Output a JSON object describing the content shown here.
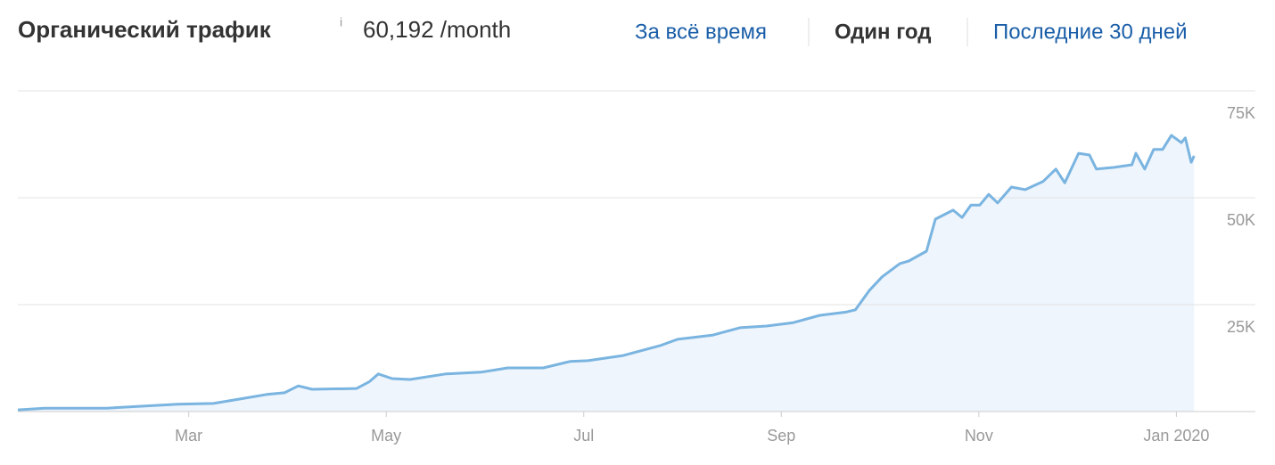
{
  "header": {
    "title": "Органический трафик",
    "info": "i",
    "total": "60,192 /month",
    "tabs": [
      "За всё время",
      "Один год",
      "Последние 30 дней"
    ]
  },
  "chart_data": {
    "type": "area",
    "color": "#7ab4e0",
    "fill": "#eef5fc",
    "grid": true,
    "x": [
      0.27,
      0.54,
      1.17,
      1.89,
      2.25,
      2.79,
      2.97,
      3.11,
      3.25,
      3.7,
      3.83,
      3.92,
      4.06,
      4.24,
      4.6,
      4.96,
      5.23,
      5.59,
      5.86,
      6.04,
      6.4,
      6.77,
      6.95,
      7.31,
      7.58,
      7.85,
      8.12,
      8.39,
      8.66,
      8.75,
      8.89,
      9.02,
      9.2,
      9.29,
      9.47,
      9.56,
      9.74,
      9.83,
      9.92,
      10.01,
      10.1,
      10.19,
      10.33,
      10.47,
      10.65,
      10.78,
      10.87,
      11.01,
      11.12,
      11.19,
      11.37,
      11.55,
      11.59,
      11.68,
      11.77,
      11.86,
      11.95,
      12.05,
      12.09,
      12.15,
      12.18
    ],
    "values": [
      400,
      800,
      800,
      1700,
      1900,
      4000,
      4400,
      6000,
      5200,
      5400,
      7000,
      8800,
      7700,
      7500,
      8800,
      9200,
      10200,
      10200,
      11700,
      11900,
      13100,
      15400,
      16900,
      17900,
      19600,
      20000,
      20800,
      22500,
      23300,
      23800,
      28300,
      31500,
      34600,
      35200,
      37500,
      45000,
      47100,
      45400,
      48300,
      48300,
      50800,
      48800,
      52500,
      51900,
      53800,
      56700,
      53500,
      60400,
      60000,
      56700,
      57100,
      57700,
      60400,
      56700,
      61300,
      61300,
      64600,
      62900,
      64000,
      58300,
      59800
    ],
    "xlim": [
      0.27,
      12.8
    ],
    "xticks": [
      {
        "value": 2,
        "label": "Mar"
      },
      {
        "value": 4,
        "label": "May"
      },
      {
        "value": 6,
        "label": "Jul"
      },
      {
        "value": 8,
        "label": "Sep"
      },
      {
        "value": 10,
        "label": "Nov"
      },
      {
        "value": 12,
        "label": "Jan 2020"
      }
    ],
    "ylim": [
      0,
      75000
    ],
    "yticks": [
      {
        "value": 25000,
        "label": "25K"
      },
      {
        "value": 50000,
        "label": "50K"
      },
      {
        "value": 75000,
        "label": "75K"
      }
    ]
  }
}
